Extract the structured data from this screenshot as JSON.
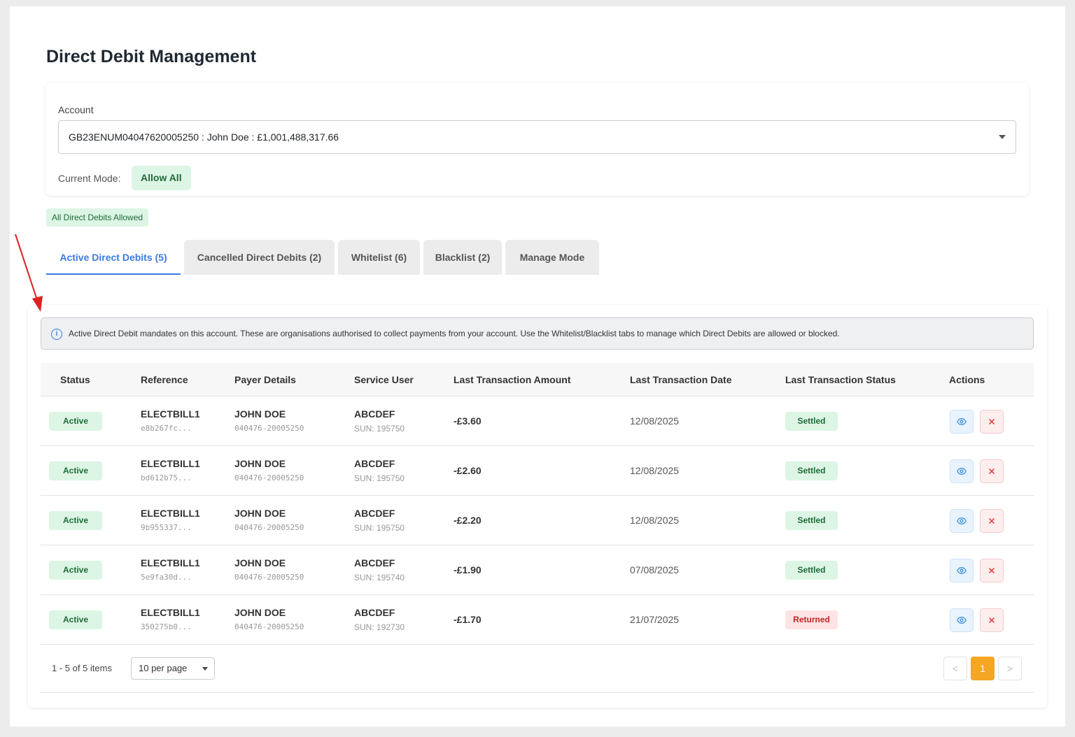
{
  "page": {
    "title": "Direct Debit Management"
  },
  "account": {
    "label": "Account",
    "selected": "GB23ENUM04047620005250 : John Doe : £1,001,488,317.66",
    "mode_label": "Current Mode:",
    "mode_value": "Allow All"
  },
  "status_pill": "All Direct Debits Allowed",
  "tabs": [
    {
      "label": "Active Direct Debits (5)",
      "active": true
    },
    {
      "label": "Cancelled Direct Debits (2)",
      "active": false
    },
    {
      "label": "Whitelist (6)",
      "active": false
    },
    {
      "label": "Blacklist (2)",
      "active": false
    },
    {
      "label": "Manage Mode",
      "active": false
    }
  ],
  "info_text": "Active Direct Debit mandates on this account. These are organisations authorised to collect payments from your account. Use the Whitelist/Blacklist tabs to manage which Direct Debits are allowed or blocked.",
  "table": {
    "headers": [
      "Status",
      "Reference",
      "Payer Details",
      "Service User",
      "Last Transaction Amount",
      "Last Transaction Date",
      "Last Transaction Status",
      "Actions"
    ],
    "rows": [
      {
        "status": "Active",
        "reference": "ELECTBILL1",
        "ref_id": "e8b267fc...",
        "payer": "JOHN DOE",
        "payer_acct": "040476-20005250",
        "service_user": "ABCDEF",
        "sun": "SUN: 195750",
        "amount": "-£3.60",
        "date": "12/08/2025",
        "tx_status": "Settled"
      },
      {
        "status": "Active",
        "reference": "ELECTBILL1",
        "ref_id": "bd612b75...",
        "payer": "JOHN DOE",
        "payer_acct": "040476-20005250",
        "service_user": "ABCDEF",
        "sun": "SUN: 195750",
        "amount": "-£2.60",
        "date": "12/08/2025",
        "tx_status": "Settled"
      },
      {
        "status": "Active",
        "reference": "ELECTBILL1",
        "ref_id": "9b955337...",
        "payer": "JOHN DOE",
        "payer_acct": "040476-20005250",
        "service_user": "ABCDEF",
        "sun": "SUN: 195750",
        "amount": "-£2.20",
        "date": "12/08/2025",
        "tx_status": "Settled"
      },
      {
        "status": "Active",
        "reference": "ELECTBILL1",
        "ref_id": "5e9fa30d...",
        "payer": "JOHN DOE",
        "payer_acct": "040476-20005250",
        "service_user": "ABCDEF",
        "sun": "SUN: 195740",
        "amount": "-£1.90",
        "date": "07/08/2025",
        "tx_status": "Settled"
      },
      {
        "status": "Active",
        "reference": "ELECTBILL1",
        "ref_id": "350275b0...",
        "payer": "JOHN DOE",
        "payer_acct": "040476-20005250",
        "service_user": "ABCDEF",
        "sun": "SUN: 192730",
        "amount": "-£1.70",
        "date": "21/07/2025",
        "tx_status": "Returned"
      }
    ]
  },
  "pagination": {
    "items_count": "1 - 5 of 5 items",
    "page_size": "10 per page",
    "prev": "<",
    "current": "1",
    "next": ">"
  },
  "icons": {
    "view": "eye-icon",
    "cancel": "close-icon",
    "info": "info-icon",
    "annotation": "red-arrow"
  },
  "colors": {
    "accent": "#3b7be0",
    "success_bg": "#dcf5e4",
    "success_text": "#1f6b3a",
    "danger_bg": "#fde3e3",
    "danger_text": "#c02626",
    "page_active": "#f5a623",
    "annotation_arrow": "#e02020"
  }
}
